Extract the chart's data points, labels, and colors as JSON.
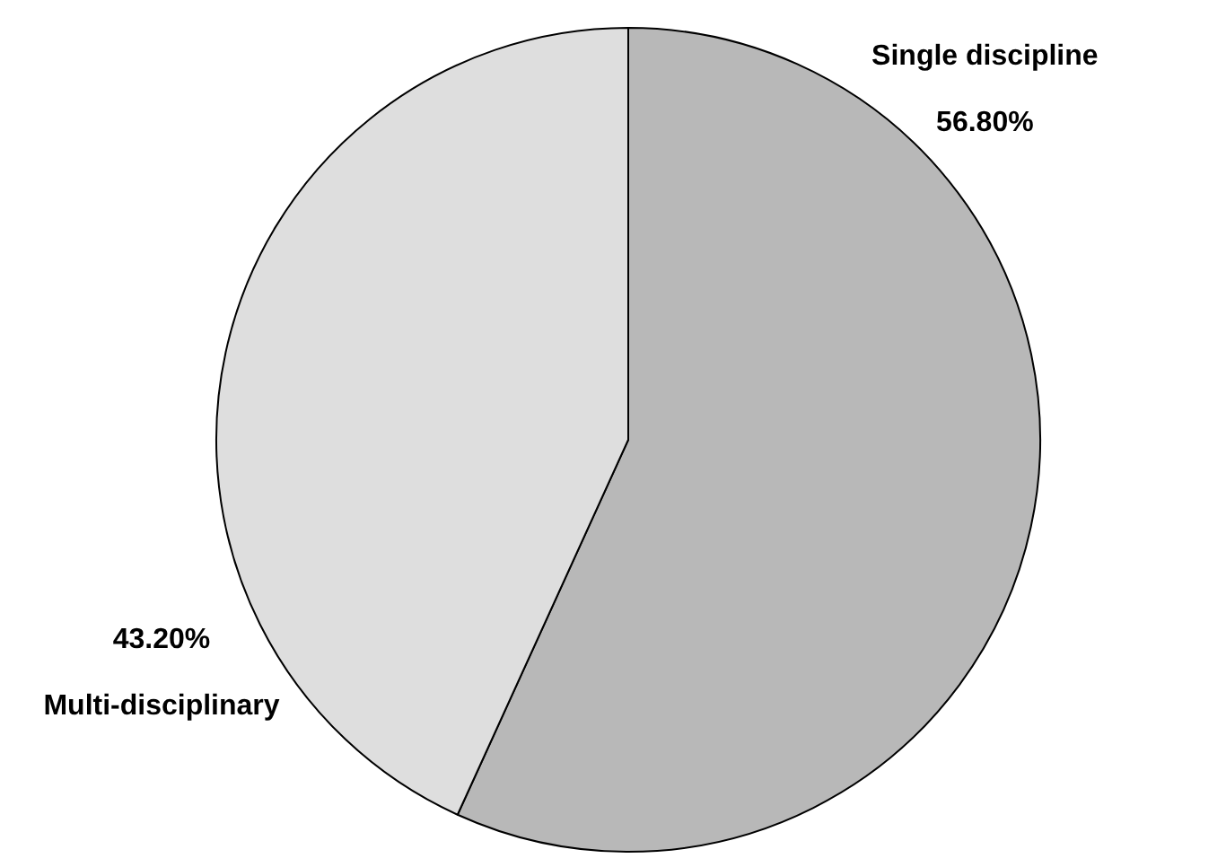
{
  "chart_data": {
    "type": "pie",
    "categories": [
      "Single discipline",
      "Multi-disciplinary"
    ],
    "values": [
      56.8,
      43.2
    ],
    "colors": [
      "#b8b8b8",
      "#dedede"
    ],
    "value_labels": [
      "56.80%",
      "43.20%"
    ],
    "legend": false
  }
}
